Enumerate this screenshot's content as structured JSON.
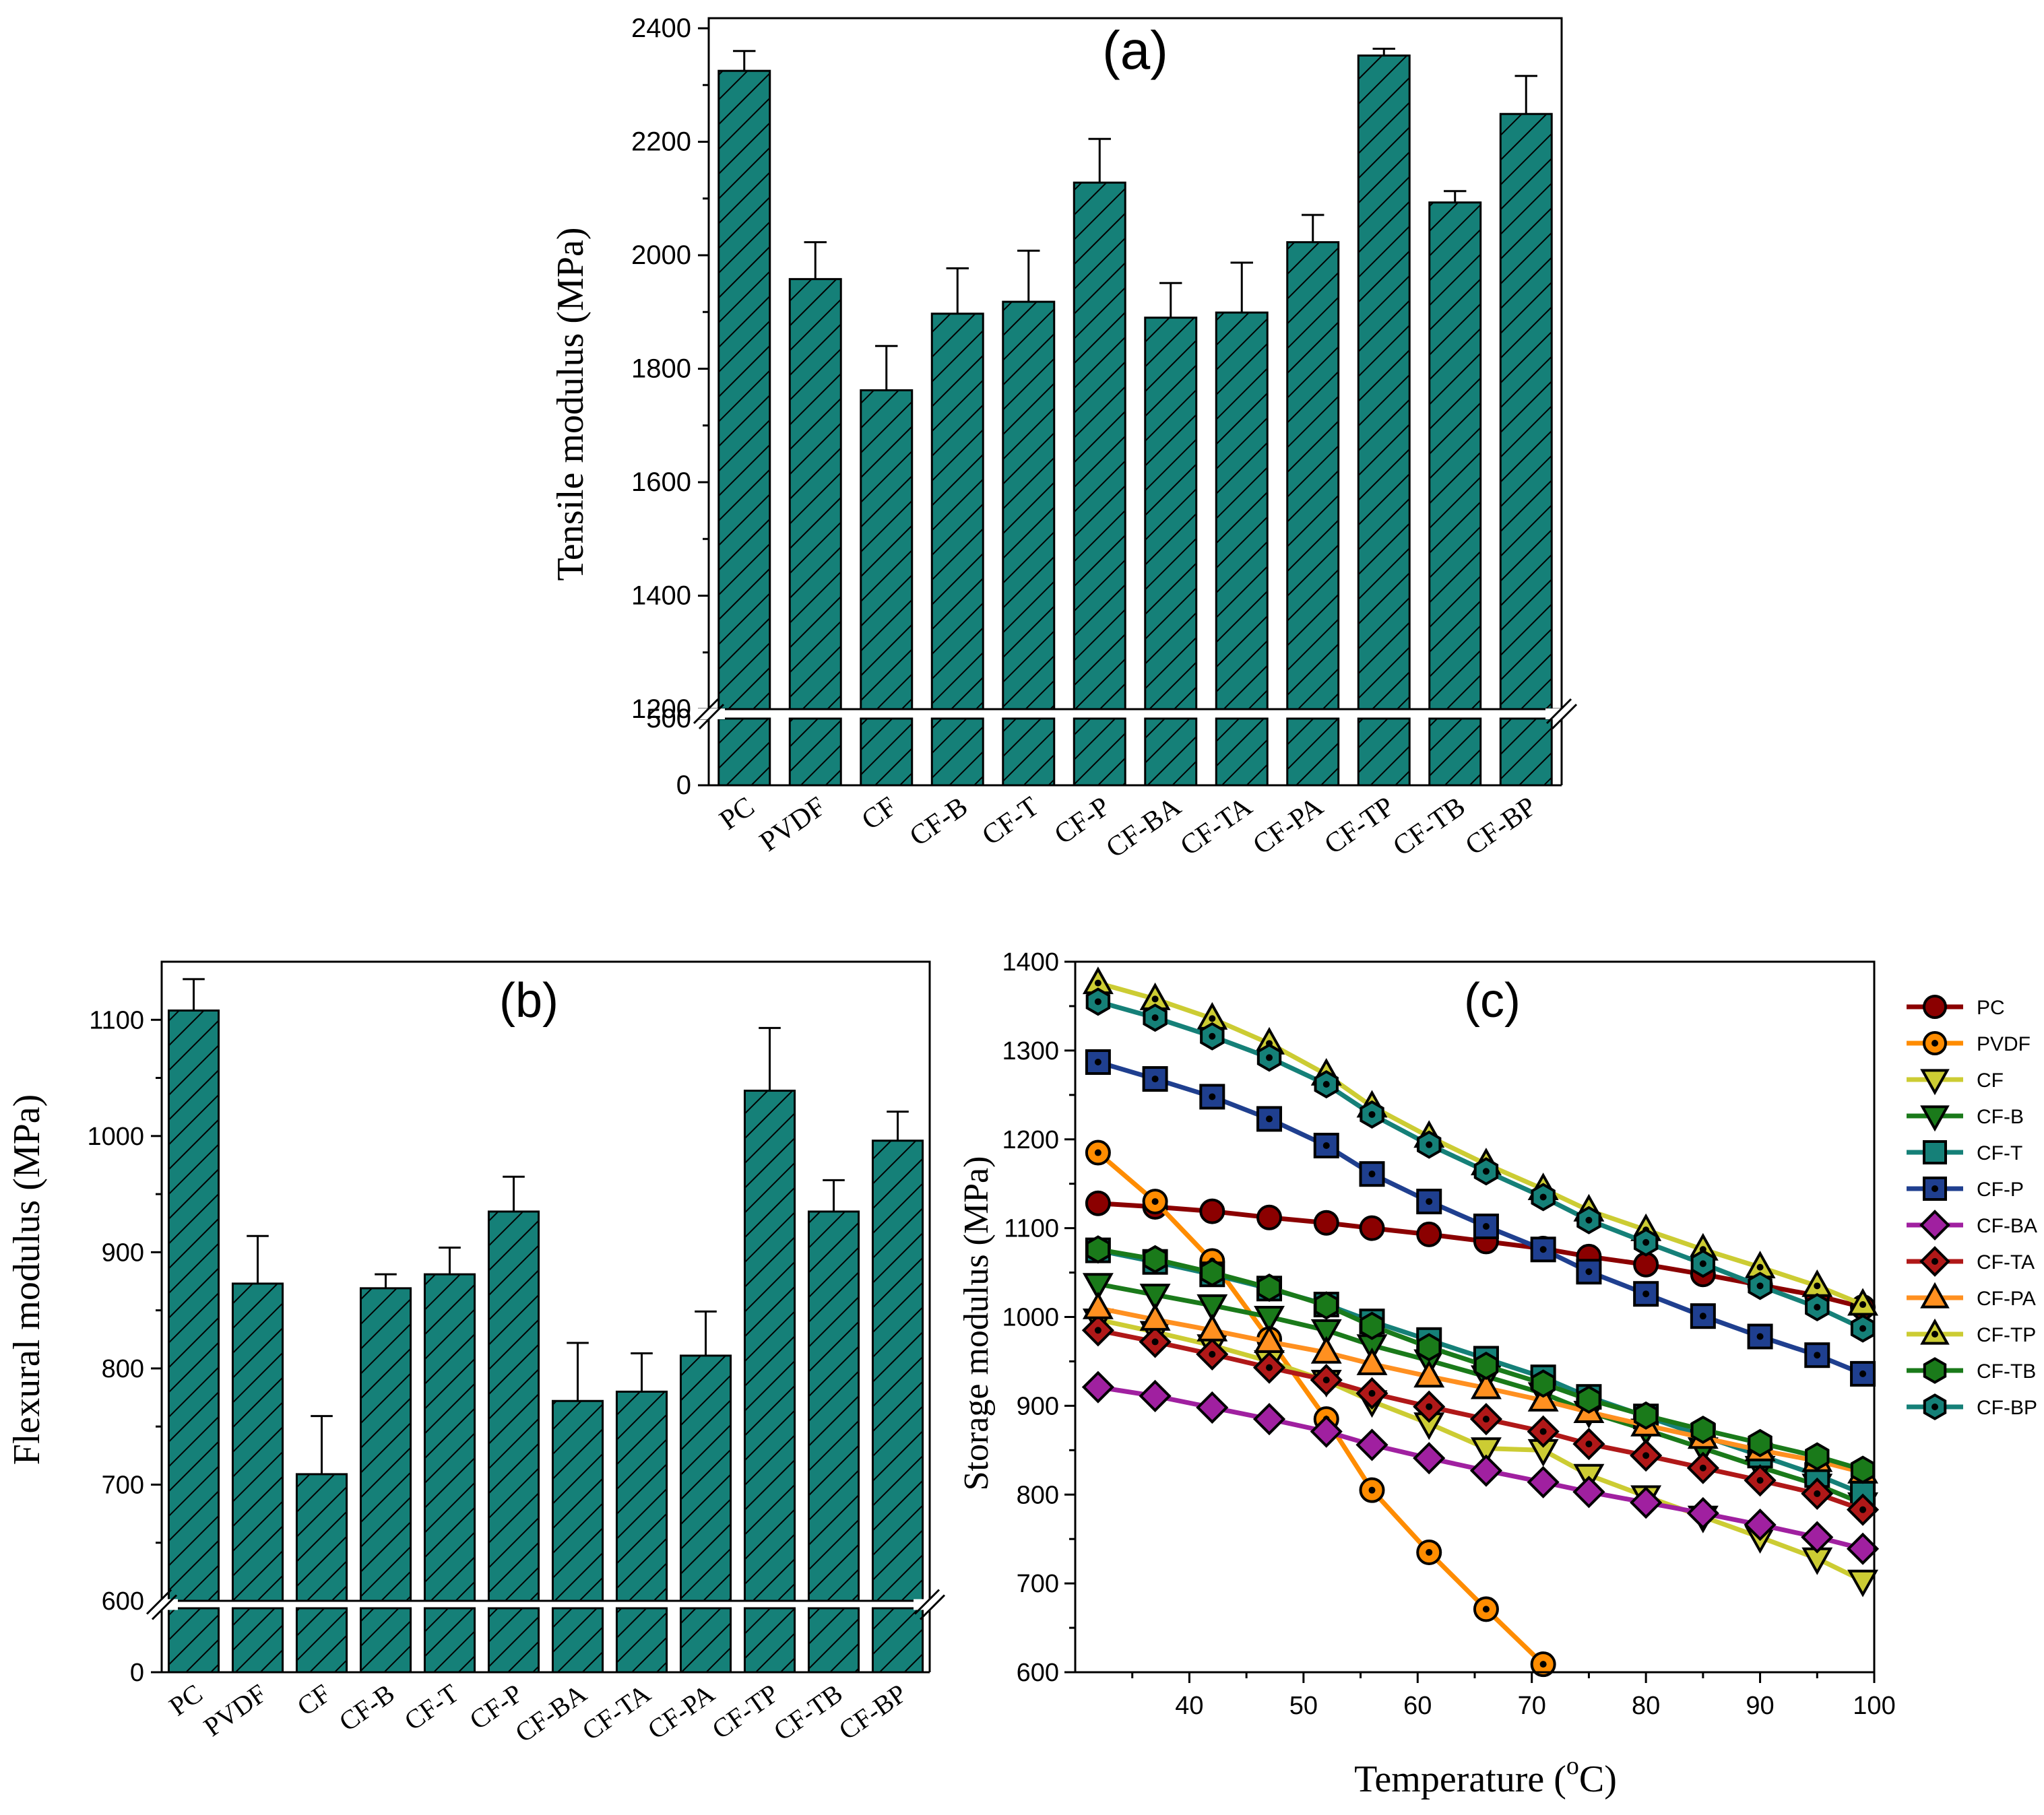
{
  "chart_data": [
    {
      "id": "a",
      "type": "bar",
      "panel_label": "(a)",
      "ylabel": "Tensile modulus (MPa)",
      "xlabel": "",
      "categories": [
        "PC",
        "PVDF",
        "CF",
        "CF-B",
        "CF-T",
        "CF-P",
        "CF-BA",
        "CF-TA",
        "CF-PA",
        "CF-TP",
        "CF-TB",
        "CF-BP"
      ],
      "values": [
        2325,
        1958,
        1762,
        1897,
        1918,
        2128,
        1890,
        1899,
        2023,
        2352,
        2093,
        2249
      ],
      "errors": [
        35,
        65,
        78,
        80,
        90,
        77,
        61,
        88,
        48,
        12,
        20,
        67
      ],
      "ylim_upper": [
        1200,
        2400
      ],
      "ylim_lower": [
        0,
        500
      ],
      "y_ticks_upper": [
        "1200",
        "1400",
        "1600",
        "1800",
        "2000",
        "2200",
        "2400"
      ],
      "y_ticks_lower": [
        "0",
        "500"
      ],
      "axis_break": true,
      "bar_color": "#158078",
      "hatch": "diagonal"
    },
    {
      "id": "b",
      "type": "bar",
      "panel_label": "(b)",
      "ylabel": "Flexural modulus (MPa)",
      "xlabel": "",
      "categories": [
        "PC",
        "PVDF",
        "CF",
        "CF-B",
        "CF-T",
        "CF-P",
        "CF-BA",
        "CF-TA",
        "CF-PA",
        "CF-TP",
        "CF-TB",
        "CF-BP"
      ],
      "values": [
        1108,
        873,
        709,
        869,
        881,
        935,
        772,
        780,
        811,
        1039,
        935,
        996
      ],
      "errors": [
        27,
        41,
        50,
        12,
        23,
        30,
        50,
        33,
        38,
        54,
        27,
        25
      ],
      "ylim_upper": [
        600,
        1150
      ],
      "ylim_lower": [
        0,
        600
      ],
      "y_ticks_upper": [
        "600",
        "700",
        "800",
        "900",
        "1000",
        "1100"
      ],
      "y_ticks_lower": [
        "0"
      ],
      "axis_break": true,
      "bar_color": "#158078",
      "hatch": "diagonal"
    },
    {
      "id": "c",
      "type": "line",
      "panel_label": "(c)",
      "xlabel_main": "Temperature (",
      "xlabel_sup": "o",
      "xlabel_tail": "C)",
      "ylabel": "Storage modulus (MPa)",
      "xlim": [
        30,
        100
      ],
      "ylim": [
        600,
        1400
      ],
      "x_ticks": [
        "40",
        "50",
        "60",
        "70",
        "80",
        "90",
        "100"
      ],
      "y_ticks": [
        "600",
        "700",
        "800",
        "900",
        "1000",
        "1100",
        "1200",
        "1300",
        "1400"
      ],
      "x": [
        32,
        37,
        42,
        47,
        52,
        56,
        61,
        66,
        71,
        75,
        80,
        85,
        90,
        95,
        99
      ],
      "legend_position": "right",
      "series": [
        {
          "name": "PC",
          "color": "#8b0000",
          "marker": "circle",
          "dot": false,
          "values": [
            1128,
            1124,
            1119,
            1112,
            1106,
            1100,
            1093,
            1085,
            1077,
            1068,
            1059,
            1048,
            1036,
            1024,
            1011
          ]
        },
        {
          "name": "PVDF",
          "color": "#ff8c00",
          "marker": "circle",
          "dot": true,
          "x": [
            32,
            37,
            42,
            47,
            52,
            56,
            61,
            66,
            71
          ],
          "values": [
            1185,
            1130,
            1063,
            975,
            885,
            805,
            735,
            671,
            609
          ]
        },
        {
          "name": "CF",
          "color": "#cccc33",
          "marker": "triangle-down",
          "dot": false,
          "values": [
            997,
            983,
            968,
            950,
            928,
            905,
            880,
            852,
            850,
            822,
            798,
            775,
            752,
            728,
            703
          ]
        },
        {
          "name": "CF-B",
          "color": "#1a7a1a",
          "marker": "triangle-down",
          "dot": false,
          "values": [
            1037,
            1025,
            1013,
            1000,
            985,
            968,
            951,
            933,
            914,
            893,
            873,
            852,
            831,
            811,
            790
          ]
        },
        {
          "name": "CF-T",
          "color": "#158078",
          "marker": "square",
          "dot": false,
          "values": [
            1075,
            1062,
            1048,
            1032,
            1014,
            995,
            974,
            953,
            932,
            910,
            888,
            866,
            844,
            822,
            801
          ]
        },
        {
          "name": "CF-P",
          "color": "#1f3f8f",
          "marker": "square",
          "dot": true,
          "values": [
            1287,
            1268,
            1248,
            1223,
            1193,
            1161,
            1130,
            1102,
            1076,
            1051,
            1026,
            1001,
            978,
            957,
            936
          ]
        },
        {
          "name": "CF-BA",
          "color": "#a020a0",
          "marker": "diamond",
          "dot": false,
          "values": [
            921,
            911,
            898,
            885,
            871,
            856,
            841,
            827,
            814,
            803,
            791,
            779,
            766,
            752,
            739
          ]
        },
        {
          "name": "CF-TA",
          "color": "#b01818",
          "marker": "diamond",
          "dot": true,
          "values": [
            985,
            972,
            958,
            943,
            929,
            914,
            899,
            885,
            871,
            857,
            844,
            830,
            816,
            801,
            783
          ]
        },
        {
          "name": "CF-PA",
          "color": "#ff9020",
          "marker": "triangle-up",
          "dot": false,
          "values": [
            1010,
            997,
            985,
            972,
            960,
            947,
            933,
            920,
            906,
            893,
            878,
            864,
            850,
            838,
            825
          ]
        },
        {
          "name": "CF-TP",
          "color": "#cccc33",
          "marker": "triangle-up",
          "dot": true,
          "values": [
            1376,
            1358,
            1336,
            1308,
            1273,
            1237,
            1203,
            1172,
            1144,
            1120,
            1098,
            1076,
            1056,
            1035,
            1014
          ]
        },
        {
          "name": "CF-TB",
          "color": "#1a7a1a",
          "marker": "hexagon",
          "dot": false,
          "values": [
            1076,
            1065,
            1050,
            1033,
            1013,
            990,
            966,
            945,
            925,
            907,
            889,
            873,
            858,
            843,
            828
          ]
        },
        {
          "name": "CF-BP",
          "color": "#158078",
          "marker": "hexagon",
          "dot": true,
          "values": [
            1355,
            1337,
            1316,
            1292,
            1262,
            1228,
            1194,
            1164,
            1135,
            1109,
            1084,
            1060,
            1035,
            1011,
            987
          ]
        }
      ]
    }
  ]
}
